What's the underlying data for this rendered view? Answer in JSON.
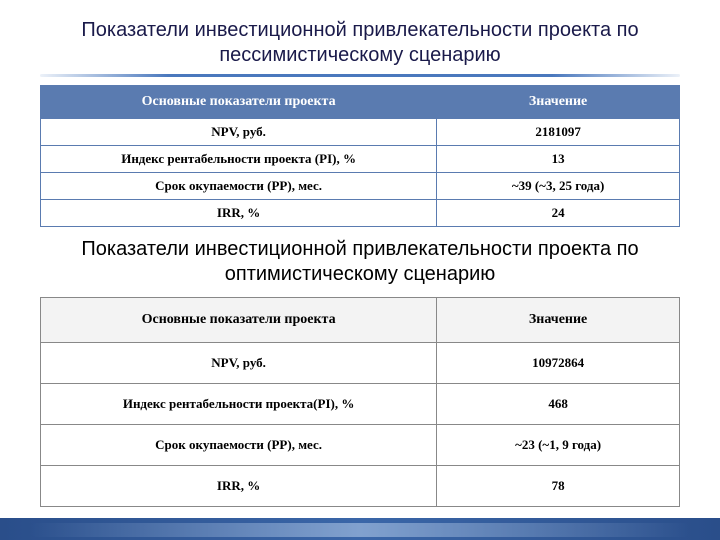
{
  "title1": "Показатели инвестиционной привлекательности проекта по пессимистическому сценарию",
  "title2": "Показатели инвестиционной привлекательности проекта по оптимистическому сценарию",
  "table1": {
    "header_bg": "#5a7bb0",
    "border_color": "#5a7bb0",
    "columns": [
      "Основные показатели проекта",
      "Значение"
    ],
    "rows": [
      [
        "NPV, руб.",
        "2181097"
      ],
      [
        "Индекс рентабельности проекта (PI), %",
        "13"
      ],
      [
        "Срок окупаемости (PP), мес.",
        "~39 (~3, 25 года)"
      ],
      [
        "IRR, %",
        "24"
      ]
    ]
  },
  "table2": {
    "header_bg": "#f3f3f3",
    "border_color": "#888888",
    "columns": [
      "Основные показатели проекта",
      "Значение"
    ],
    "rows": [
      [
        "NPV, руб.",
        "10972864"
      ],
      [
        "Индекс рентабельности проекта(PI), %",
        "468"
      ],
      [
        "Срок окупаемости (PP), мес.",
        "~23 (~1, 9 года)"
      ],
      [
        "IRR, %",
        "78"
      ]
    ]
  },
  "colors": {
    "title1_color": "#1a1a4a",
    "title2_color": "#000000",
    "accent": "#4a78bd",
    "footer_grad_a": "#2a4e8a",
    "footer_grad_b": "#3a66a8"
  }
}
